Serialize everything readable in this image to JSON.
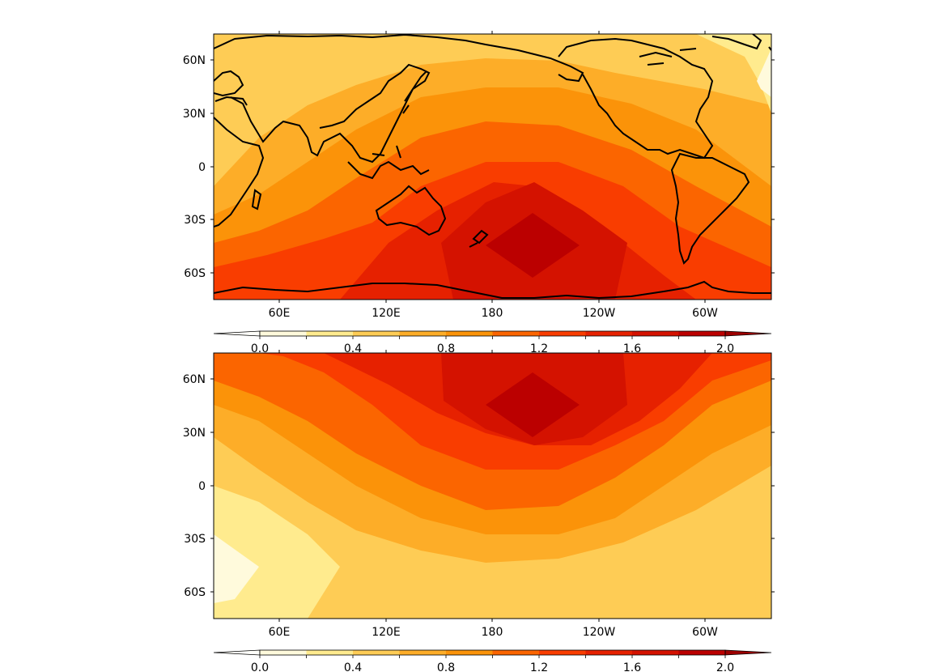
{
  "colormap": [
    "#ffffcc",
    "#ffeda0",
    "#fed976",
    "#feb24c",
    "#fd8d3c",
    "#fc4e2a",
    "#e31a1c",
    "#bd0026",
    "#800026"
  ],
  "colormap_display": [
    "#fffadc",
    "#ffeb8e",
    "#fecc55",
    "#fdad28",
    "#fb9309",
    "#fb6500",
    "#f93d00",
    "#e62100",
    "#d41200",
    "#bb0000"
  ],
  "panels": [
    {
      "name": "top",
      "lat_labels": [
        "60N",
        "30N",
        "0",
        "30S",
        "60S"
      ],
      "lon_labels": [
        "60E",
        "120E",
        "180",
        "120W",
        "60W"
      ],
      "field_peak": {
        "lon": 195,
        "lat": -45
      }
    },
    {
      "name": "bottom",
      "lat_labels": [
        "60N",
        "30N",
        "0",
        "30S",
        "60S"
      ],
      "lon_labels": [
        "60E",
        "120E",
        "180",
        "120W",
        "60W"
      ],
      "field_peak": {
        "lon": 195,
        "lat": 45
      }
    }
  ],
  "colorbar": {
    "tick_labels": [
      "0.0",
      "0.4",
      "0.8",
      "1.2",
      "1.6",
      "2.0"
    ],
    "levels": [
      0.0,
      0.2,
      0.4,
      0.6,
      0.8,
      1.0,
      1.2,
      1.4,
      1.6,
      1.8,
      2.0
    ]
  },
  "map_extent": {
    "lon_min": 24,
    "lon_max": 339,
    "lat_min": -75,
    "lat_max": 75
  }
}
